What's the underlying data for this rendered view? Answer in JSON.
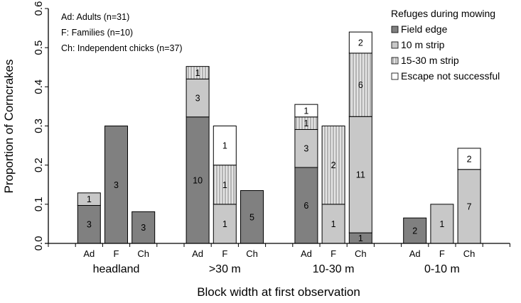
{
  "chart_data": {
    "type": "bar",
    "stacked": true,
    "xlabel": "Block width at first observation",
    "ylabel": "Proportion of Corncrakes",
    "ylim": [
      0,
      0.6
    ],
    "yticks": [
      "0.0",
      "0.1",
      "0.2",
      "0.3",
      "0.4",
      "0.5",
      "0.6"
    ],
    "grid": false,
    "groups": [
      "headland",
      ">30 m",
      "10-30 m",
      "0-10 m"
    ],
    "subcategories": [
      "Ad",
      "F",
      "Ch"
    ],
    "notes": [
      "Ad: Adults (n=31)",
      "F: Families (n=10)",
      "Ch: Independent chicks (n=37)"
    ],
    "legend": {
      "title": "Refuges during mowing",
      "placement": "top-right",
      "entries": [
        "Field edge",
        "10 m strip",
        "15-30 m strip",
        "Escape not successful"
      ]
    },
    "series_colors": [
      "#808080",
      "#c8c8c8",
      "hatch",
      "#ffffff"
    ],
    "series": [
      {
        "name": "Field edge",
        "values": [
          0.097,
          0.3,
          0.081,
          0.323,
          0,
          0.135,
          0.194,
          0,
          0.027,
          0.065,
          0,
          0
        ],
        "labels": [
          "3",
          "3",
          "3",
          "10",
          "",
          "5",
          "6",
          "",
          "1",
          "2",
          "",
          ""
        ]
      },
      {
        "name": "10 m strip",
        "values": [
          0.032,
          0,
          0,
          0.097,
          0.1,
          0,
          0.097,
          0.1,
          0.297,
          0,
          0.1,
          0.189
        ],
        "labels": [
          "1",
          "",
          "",
          "3",
          "1",
          "",
          "3",
          "1",
          "11",
          "",
          "1",
          "7"
        ]
      },
      {
        "name": "15-30 m strip",
        "values": [
          0,
          0,
          0,
          0.032,
          0.1,
          0,
          0.032,
          0.2,
          0.162,
          0,
          0,
          0
        ],
        "labels": [
          "",
          "",
          "",
          "1",
          "1",
          "",
          "1",
          "2",
          "6",
          "",
          "",
          ""
        ]
      },
      {
        "name": "Escape not successful",
        "values": [
          0,
          0,
          0,
          0,
          0.1,
          0,
          0.032,
          0,
          0.054,
          0,
          0,
          0.054
        ],
        "labels": [
          "",
          "",
          "",
          "",
          "1",
          "",
          "1",
          "",
          "2",
          "",
          "",
          "2"
        ]
      }
    ]
  }
}
